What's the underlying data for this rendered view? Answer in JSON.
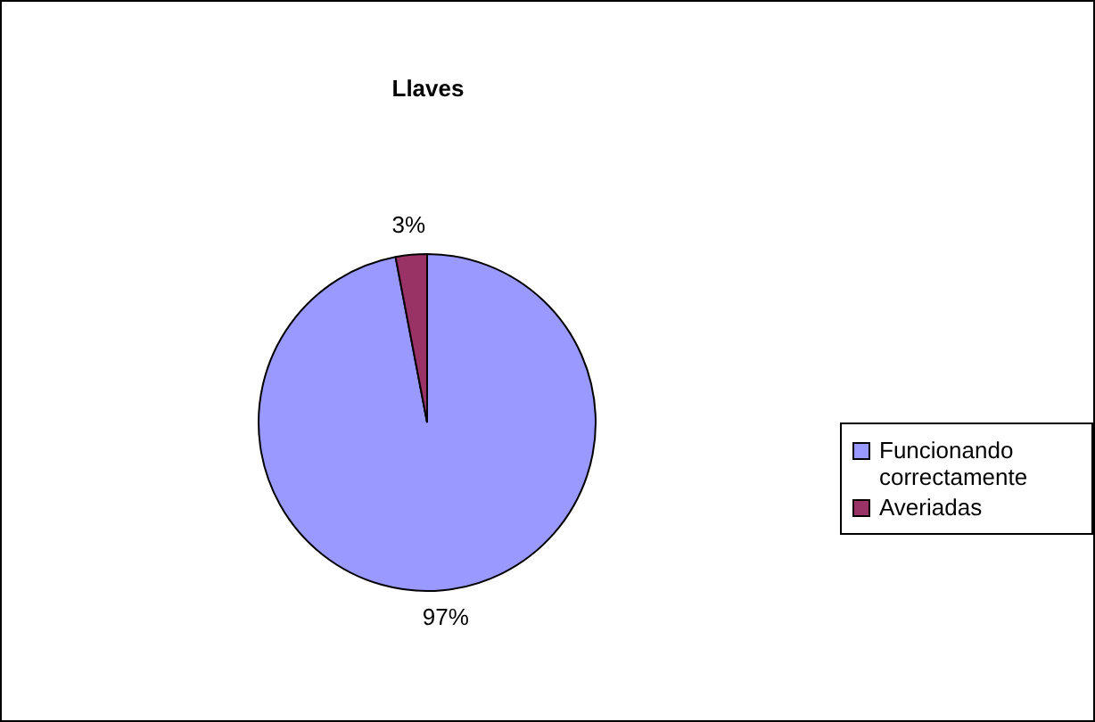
{
  "chart_data": {
    "type": "pie",
    "title": "Llaves",
    "categories": [
      "Funcionando correctamente",
      "Averiadas"
    ],
    "values": [
      97,
      3
    ],
    "colors": [
      "#9999ff",
      "#993366"
    ],
    "value_labels": [
      "97%",
      "3%"
    ],
    "legend": "right"
  }
}
